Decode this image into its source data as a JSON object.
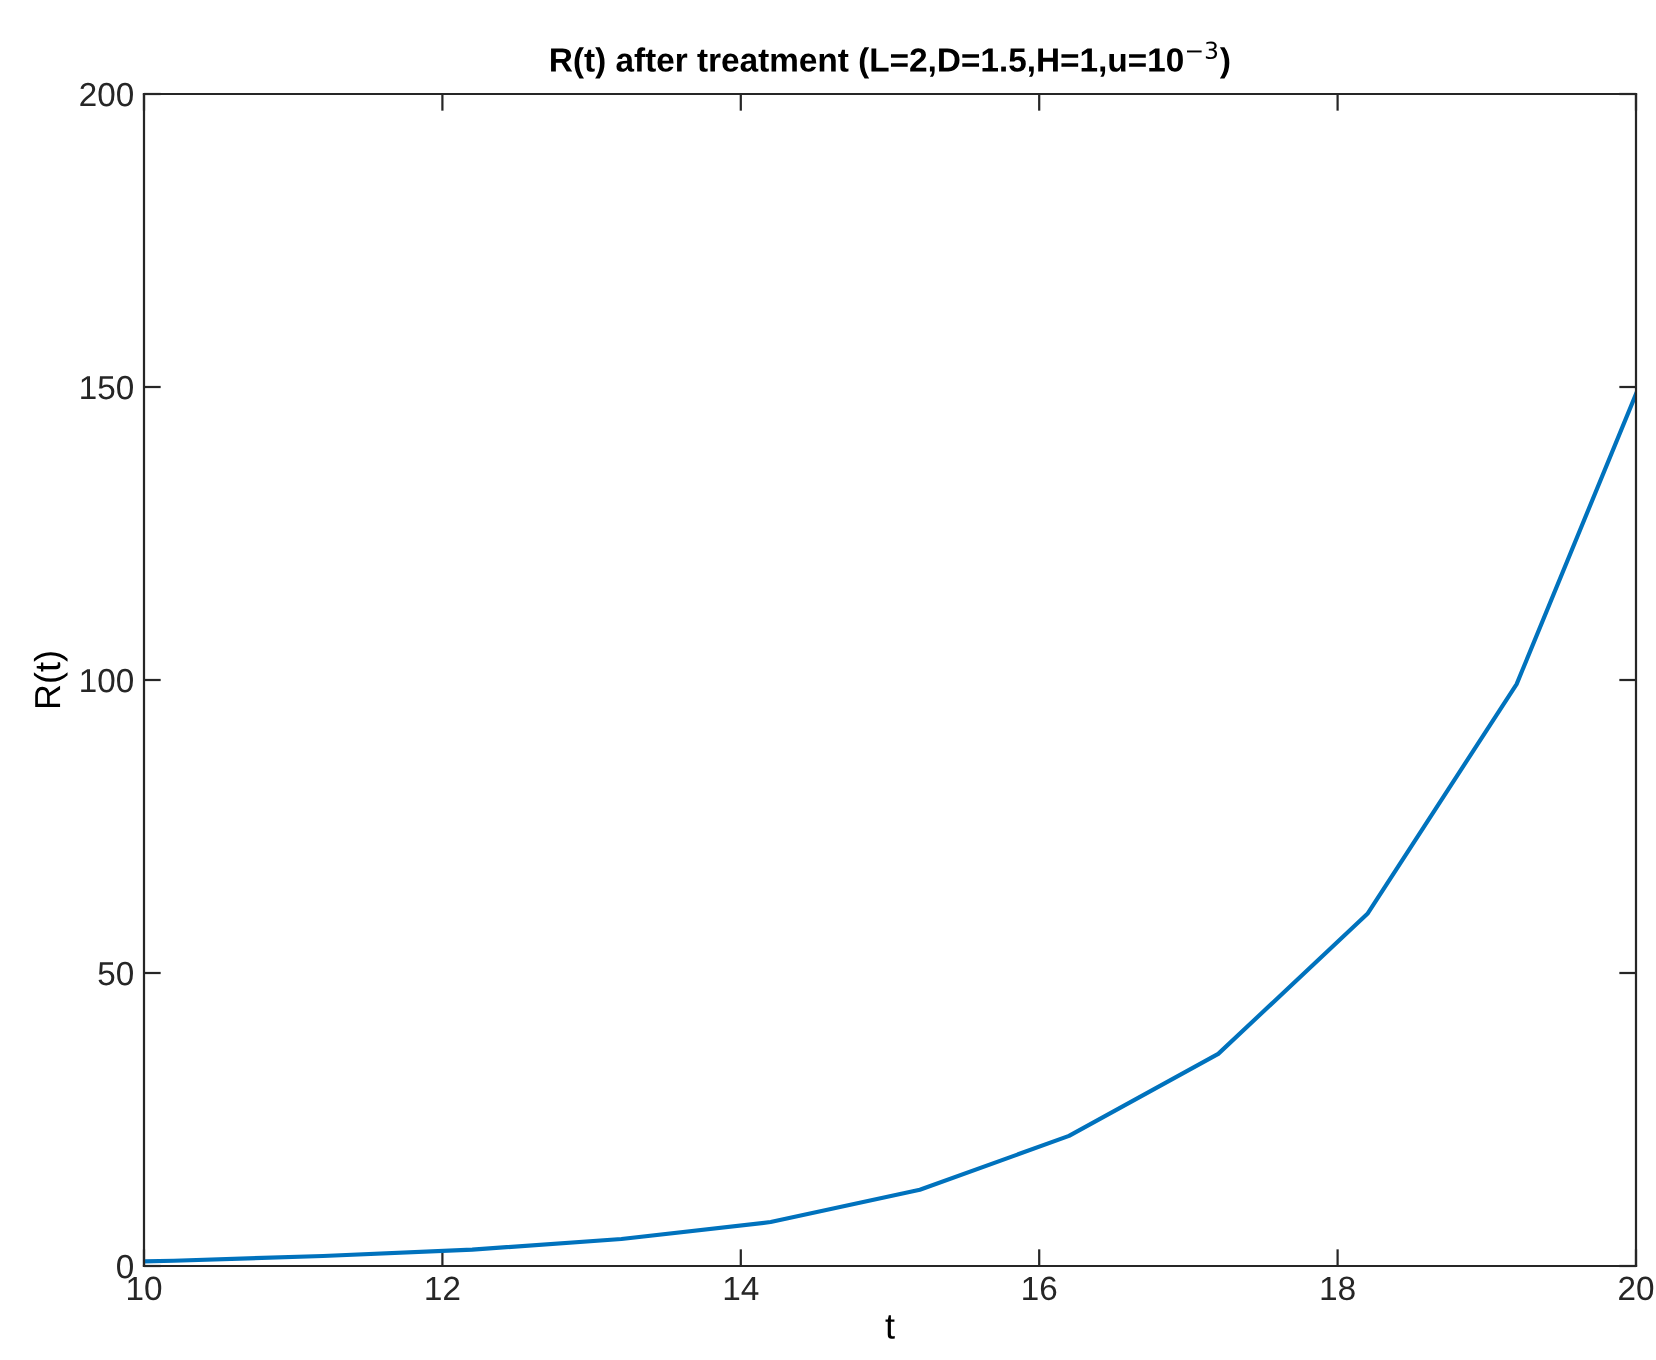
{
  "chart_data": {
    "type": "line",
    "title": "R(t) after treatment (L=2,D=1.5,H=1,u=10$^{−3}$)",
    "xlabel": "t",
    "ylabel": "R(t)",
    "series": [
      {
        "color": "#0072bd",
        "x": [
          10,
          10.2,
          11.2,
          12.2,
          13.2,
          14.2,
          15.2,
          16.2,
          17.2,
          18.2,
          19.2,
          20
        ],
        "values": [
          0.8,
          0.9,
          1.7,
          2.8,
          4.6,
          7.5,
          13,
          22.2,
          36.2,
          60.1,
          99.3,
          148.8
        ]
      }
    ],
    "xlim": [
      10,
      20
    ],
    "ylim": [
      0,
      200
    ],
    "xticks": [
      10,
      12,
      14,
      16,
      18,
      20
    ],
    "yticks": [
      0,
      50,
      100,
      150,
      200
    ],
    "grid": false,
    "legend": false
  }
}
